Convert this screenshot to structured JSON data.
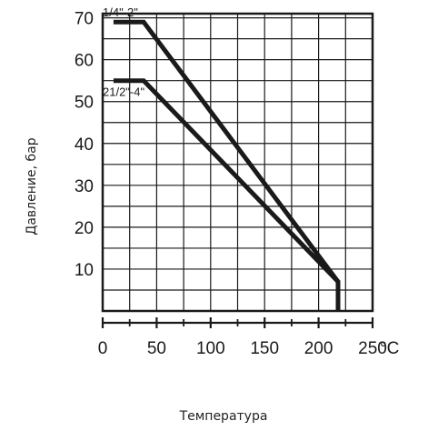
{
  "chart_data": {
    "type": "line",
    "xlabel": "Температура",
    "ylabel": "Давление, бар",
    "x_unit": "°C",
    "xlim": [
      0,
      250
    ],
    "ylim": [
      0,
      70
    ],
    "x_ticks": [
      "0",
      "50",
      "100",
      "150",
      "200",
      "250"
    ],
    "y_ticks": [
      "10",
      "20",
      "30",
      "40",
      "50",
      "60",
      "70"
    ],
    "grid": true,
    "series": [
      {
        "name": "1/4\"-2\"",
        "points": [
          [
            10,
            69
          ],
          [
            38,
            69
          ],
          [
            218,
            7
          ],
          [
            218,
            0
          ]
        ]
      },
      {
        "name": "21/2\"-4\"",
        "points": [
          [
            10,
            55
          ],
          [
            38,
            55
          ],
          [
            218,
            7
          ],
          [
            218,
            0
          ]
        ]
      }
    ],
    "line_color": "#1a1a1a"
  }
}
